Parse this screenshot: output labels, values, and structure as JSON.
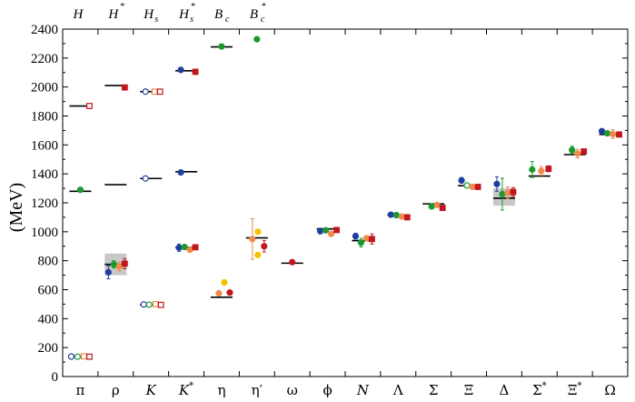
{
  "chart_data": {
    "type": "scatter",
    "ylabel": "(MeV)",
    "ylim": [
      0,
      2400
    ],
    "yticks": [
      0,
      200,
      400,
      600,
      800,
      1000,
      1200,
      1400,
      1600,
      1800,
      2000,
      2200,
      2400
    ],
    "categories": [
      {
        "label": "π",
        "italic": false
      },
      {
        "label": "ρ",
        "italic": false
      },
      {
        "label": "K",
        "italic": true
      },
      {
        "label": "K",
        "italic": true,
        "sup": "*"
      },
      {
        "label": "η",
        "italic": false
      },
      {
        "label": "η′",
        "italic": false
      },
      {
        "label": "ω",
        "italic": false
      },
      {
        "label": "ϕ",
        "italic": false
      },
      {
        "label": "N",
        "italic": true
      },
      {
        "label": "Λ",
        "italic": false
      },
      {
        "label": "Σ",
        "italic": false
      },
      {
        "label": "Ξ",
        "italic": false
      },
      {
        "label": "Δ",
        "italic": false
      },
      {
        "label": "Σ",
        "italic": false,
        "sup": "*"
      },
      {
        "label": "Ξ",
        "italic": false,
        "sup": "*"
      },
      {
        "label": "Ω",
        "italic": false
      }
    ],
    "top_labels": [
      {
        "main": "H",
        "sub": "",
        "sup": ""
      },
      {
        "main": "H",
        "sub": "",
        "sup": "*"
      },
      {
        "main": "H",
        "sub": "s",
        "sup": ""
      },
      {
        "main": "H",
        "sub": "s",
        "sup": "*"
      },
      {
        "main": "B",
        "sub": "c",
        "sup": ""
      },
      {
        "main": "B",
        "sub": "c",
        "sup": "*"
      }
    ],
    "experiment": [
      {
        "cat": 0,
        "y": 138
      },
      {
        "cat": 1,
        "y": 775
      },
      {
        "cat": 2,
        "y": 496
      },
      {
        "cat": 3,
        "y": 892
      },
      {
        "cat": 4,
        "y": 548
      },
      {
        "cat": 5,
        "y": 958
      },
      {
        "cat": 6,
        "y": 783
      },
      {
        "cat": 7,
        "y": 1020
      },
      {
        "cat": 8,
        "y": 939
      },
      {
        "cat": 9,
        "y": 1116
      },
      {
        "cat": 10,
        "y": 1193
      },
      {
        "cat": 11,
        "y": 1318
      },
      {
        "cat": 12,
        "y": 1232
      },
      {
        "cat": 13,
        "y": 1385
      },
      {
        "cat": 14,
        "y": 1533
      },
      {
        "cat": 15,
        "y": 1672
      },
      {
        "cat": 0,
        "y": 1280
      },
      {
        "cat": 0,
        "y": 1869
      },
      {
        "cat": 1,
        "y": 1325
      },
      {
        "cat": 1,
        "y": 2010
      },
      {
        "cat": 2,
        "y": 1368
      },
      {
        "cat": 2,
        "y": 1968
      },
      {
        "cat": 3,
        "y": 1415
      },
      {
        "cat": 3,
        "y": 2112
      },
      {
        "cat": 4,
        "y": 2277
      }
    ],
    "width_bands": [
      {
        "cat": 1,
        "low": 700,
        "high": 850
      },
      {
        "cat": 12,
        "low": 1180,
        "high": 1300
      }
    ],
    "colors": {
      "blue": "#1f3fa0",
      "green": "#1a9a2e",
      "orange": "#f08a4b",
      "red": "#c0161c",
      "gold": "#f2c200",
      "band": "#c8c8c8"
    },
    "points": [
      {
        "cat": 0,
        "off": -10,
        "y": 138,
        "color": "blue",
        "open": true,
        "shape": "circle"
      },
      {
        "cat": 0,
        "off": -3,
        "y": 137,
        "color": "green",
        "open": true,
        "shape": "circle"
      },
      {
        "cat": 0,
        "off": 4,
        "y": 140,
        "color": "orange",
        "open": true,
        "shape": "square"
      },
      {
        "cat": 0,
        "off": 10,
        "y": 137,
        "color": "red",
        "open": true,
        "shape": "square"
      },
      {
        "cat": 0,
        "off": 0,
        "y": 1290,
        "color": "green",
        "open": false,
        "shape": "circle"
      },
      {
        "cat": 0,
        "off": 10,
        "y": 1869,
        "color": "red",
        "open": true,
        "shape": "square"
      },
      {
        "cat": 1,
        "off": -8,
        "y": 720,
        "color": "blue",
        "open": false,
        "shape": "circle",
        "err": 45
      },
      {
        "cat": 1,
        "off": -2,
        "y": 775,
        "color": "green",
        "open": false,
        "shape": "circle",
        "err": 25
      },
      {
        "cat": 1,
        "off": 4,
        "y": 760,
        "color": "orange",
        "open": false,
        "shape": "circle",
        "err": 30
      },
      {
        "cat": 1,
        "off": 10,
        "y": 780,
        "color": "red",
        "open": false,
        "shape": "square",
        "err": 35
      },
      {
        "cat": 1,
        "off": 10,
        "y": 1997,
        "color": "red",
        "open": false,
        "shape": "square"
      },
      {
        "cat": 2,
        "off": -8,
        "y": 498,
        "color": "blue",
        "open": true,
        "shape": "circle"
      },
      {
        "cat": 2,
        "off": -2,
        "y": 496,
        "color": "green",
        "open": true,
        "shape": "circle"
      },
      {
        "cat": 2,
        "off": 5,
        "y": 500,
        "color": "orange",
        "open": true,
        "shape": "square"
      },
      {
        "cat": 2,
        "off": 11,
        "y": 495,
        "color": "red",
        "open": true,
        "shape": "square"
      },
      {
        "cat": 2,
        "off": -6,
        "y": 1368,
        "color": "blue",
        "open": true,
        "shape": "circle"
      },
      {
        "cat": 2,
        "off": -6,
        "y": 1968,
        "color": "blue",
        "open": true,
        "shape": "circle"
      },
      {
        "cat": 2,
        "off": 4,
        "y": 1968,
        "color": "orange",
        "open": true,
        "shape": "square"
      },
      {
        "cat": 2,
        "off": 10,
        "y": 1968,
        "color": "red",
        "open": true,
        "shape": "square"
      },
      {
        "cat": 3,
        "off": -8,
        "y": 890,
        "color": "blue",
        "open": false,
        "shape": "circle",
        "err": 25
      },
      {
        "cat": 3,
        "off": -2,
        "y": 895,
        "color": "green",
        "open": false,
        "shape": "circle"
      },
      {
        "cat": 3,
        "off": 4,
        "y": 875,
        "color": "orange",
        "open": false,
        "shape": "circle"
      },
      {
        "cat": 3,
        "off": 10,
        "y": 893,
        "color": "red",
        "open": false,
        "shape": "square"
      },
      {
        "cat": 3,
        "off": -6,
        "y": 1410,
        "color": "blue",
        "open": false,
        "shape": "circle"
      },
      {
        "cat": 3,
        "off": -6,
        "y": 2118,
        "color": "blue",
        "open": false,
        "shape": "circle"
      },
      {
        "cat": 3,
        "off": 10,
        "y": 2105,
        "color": "red",
        "open": false,
        "shape": "square"
      },
      {
        "cat": 4,
        "off": -3,
        "y": 575,
        "color": "orange",
        "open": false,
        "shape": "circle"
      },
      {
        "cat": 4,
        "off": 3,
        "y": 650,
        "color": "gold",
        "open": false,
        "shape": "circle",
        "err": 18
      },
      {
        "cat": 4,
        "off": 9,
        "y": 580,
        "color": "red",
        "open": false,
        "shape": "circle"
      },
      {
        "cat": 4,
        "off": 0,
        "y": 2280,
        "color": "green",
        "open": false,
        "shape": "circle"
      },
      {
        "cat": 5,
        "off": -5,
        "y": 950,
        "color": "orange",
        "open": false,
        "shape": "circle",
        "err": 140
      },
      {
        "cat": 5,
        "off": 1,
        "y": 840,
        "color": "gold",
        "open": false,
        "shape": "circle"
      },
      {
        "cat": 5,
        "off": 1,
        "y": 1000,
        "color": "gold",
        "open": false,
        "shape": "circle"
      },
      {
        "cat": 5,
        "off": 8,
        "y": 900,
        "color": "red",
        "open": false,
        "shape": "circle",
        "err": 40
      },
      {
        "cat": 5,
        "off": 0,
        "y": 2330,
        "color": "green",
        "open": false,
        "shape": "circle"
      },
      {
        "cat": 6,
        "off": 0,
        "y": 790,
        "color": "red",
        "open": false,
        "shape": "circle"
      },
      {
        "cat": 7,
        "off": -8,
        "y": 1005,
        "color": "blue",
        "open": false,
        "shape": "circle",
        "err": 20
      },
      {
        "cat": 7,
        "off": -2,
        "y": 1010,
        "color": "green",
        "open": false,
        "shape": "circle"
      },
      {
        "cat": 7,
        "off": 4,
        "y": 985,
        "color": "orange",
        "open": false,
        "shape": "circle"
      },
      {
        "cat": 7,
        "off": 10,
        "y": 1012,
        "color": "red",
        "open": false,
        "shape": "square"
      },
      {
        "cat": 8,
        "off": -8,
        "y": 970,
        "color": "blue",
        "open": false,
        "shape": "circle",
        "err": 20
      },
      {
        "cat": 8,
        "off": -2,
        "y": 925,
        "color": "green",
        "open": false,
        "shape": "circle",
        "err": 30
      },
      {
        "cat": 8,
        "off": 4,
        "y": 955,
        "color": "orange",
        "open": false,
        "shape": "circle"
      },
      {
        "cat": 8,
        "off": 10,
        "y": 950,
        "color": "red",
        "open": false,
        "shape": "square",
        "err": 35
      },
      {
        "cat": 9,
        "off": -8,
        "y": 1118,
        "color": "blue",
        "open": false,
        "shape": "circle"
      },
      {
        "cat": 9,
        "off": -2,
        "y": 1115,
        "color": "green",
        "open": false,
        "shape": "circle"
      },
      {
        "cat": 9,
        "off": 4,
        "y": 1105,
        "color": "orange",
        "open": false,
        "shape": "circle"
      },
      {
        "cat": 9,
        "off": 10,
        "y": 1100,
        "color": "red",
        "open": false,
        "shape": "square"
      },
      {
        "cat": 10,
        "off": -2,
        "y": 1175,
        "color": "green",
        "open": false,
        "shape": "circle"
      },
      {
        "cat": 10,
        "off": 4,
        "y": 1185,
        "color": "orange",
        "open": false,
        "shape": "circle"
      },
      {
        "cat": 10,
        "off": 10,
        "y": 1165,
        "color": "red",
        "open": false,
        "shape": "square"
      },
      {
        "cat": 11,
        "off": -8,
        "y": 1355,
        "color": "blue",
        "open": false,
        "shape": "circle",
        "err": 20
      },
      {
        "cat": 11,
        "off": -2,
        "y": 1320,
        "color": "green",
        "open": true,
        "shape": "circle"
      },
      {
        "cat": 11,
        "off": 4,
        "y": 1310,
        "color": "orange",
        "open": false,
        "shape": "circle"
      },
      {
        "cat": 11,
        "off": 10,
        "y": 1310,
        "color": "red",
        "open": false,
        "shape": "square"
      },
      {
        "cat": 12,
        "off": -8,
        "y": 1330,
        "color": "blue",
        "open": false,
        "shape": "circle",
        "err": 50
      },
      {
        "cat": 12,
        "off": -2,
        "y": 1260,
        "color": "green",
        "open": false,
        "shape": "circle",
        "err": 110
      },
      {
        "cat": 12,
        "off": 4,
        "y": 1270,
        "color": "orange",
        "open": false,
        "shape": "circle",
        "err": 40
      },
      {
        "cat": 12,
        "off": 10,
        "y": 1275,
        "color": "red",
        "open": false,
        "shape": "square",
        "err": 30
      },
      {
        "cat": 13,
        "off": -8,
        "y": 1430,
        "color": "green",
        "open": false,
        "shape": "circle",
        "err": 55
      },
      {
        "cat": 13,
        "off": 2,
        "y": 1420,
        "color": "orange",
        "open": false,
        "shape": "circle",
        "err": 30
      },
      {
        "cat": 13,
        "off": 10,
        "y": 1435,
        "color": "red",
        "open": false,
        "shape": "square",
        "err": 20
      },
      {
        "cat": 14,
        "off": -3,
        "y": 1565,
        "color": "green",
        "open": false,
        "shape": "circle",
        "err": 25
      },
      {
        "cat": 14,
        "off": 3,
        "y": 1540,
        "color": "orange",
        "open": false,
        "shape": "circle",
        "err": 30
      },
      {
        "cat": 14,
        "off": 10,
        "y": 1555,
        "color": "red",
        "open": false,
        "shape": "square"
      },
      {
        "cat": 15,
        "off": -9,
        "y": 1695,
        "color": "blue",
        "open": false,
        "shape": "circle"
      },
      {
        "cat": 15,
        "off": -3,
        "y": 1680,
        "color": "green",
        "open": false,
        "shape": "circle"
      },
      {
        "cat": 15,
        "off": 3,
        "y": 1675,
        "color": "orange",
        "open": false,
        "shape": "circle",
        "err": 30
      },
      {
        "cat": 15,
        "off": 10,
        "y": 1672,
        "color": "red",
        "open": false,
        "shape": "square"
      }
    ]
  }
}
